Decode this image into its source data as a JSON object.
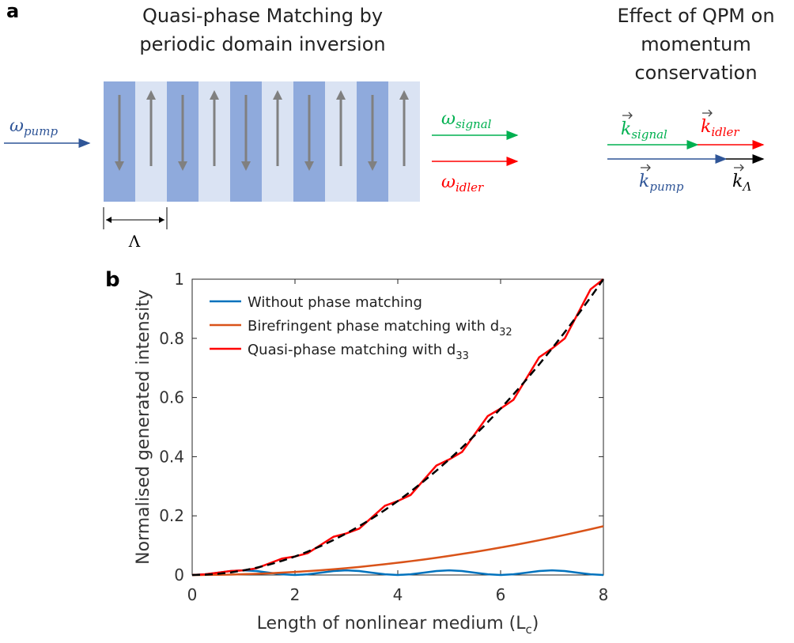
{
  "diagram": {
    "label": "a",
    "title": [
      "Quasi-phase Matching by",
      "periodic domain inversion"
    ],
    "right_title": [
      "Effect of QPM on",
      "momentum",
      "conservation"
    ],
    "omega_pump": {
      "base": "ω",
      "sub": "pump"
    },
    "omega_signal": {
      "base": "ω",
      "sub": "signal"
    },
    "omega_idler": {
      "base": "ω",
      "sub": "idler"
    },
    "k_signal": {
      "base": "k",
      "sub": "signal"
    },
    "k_idler": {
      "base": "k",
      "sub": "idler"
    },
    "k_pump": {
      "base": "k",
      "sub": "pump"
    },
    "k_lambda": {
      "base": "k",
      "sub": "Λ"
    },
    "period": "Λ"
  },
  "chart_data": {
    "type": "line",
    "label": "b",
    "xlabel": {
      "text": "Length of nonlinear medium (L",
      "sub": "c",
      "tail": ")"
    },
    "ylabel": "Normalised generated intensity",
    "xlim": [
      0,
      8
    ],
    "ylim": [
      0,
      1
    ],
    "xticks": [
      0,
      2,
      4,
      6,
      8
    ],
    "yticks": [
      0,
      0.2,
      0.4,
      0.6,
      0.8,
      1
    ],
    "grid": false,
    "legend": "top-left",
    "x": [
      0,
      0.25,
      0.5,
      0.75,
      1,
      1.25,
      1.5,
      1.75,
      2,
      2.25,
      2.5,
      2.75,
      3,
      3.25,
      3.5,
      3.75,
      4,
      4.25,
      4.5,
      4.75,
      5,
      5.25,
      5.5,
      5.75,
      6,
      6.25,
      6.5,
      6.75,
      7,
      7.25,
      7.5,
      7.75,
      8
    ],
    "series": [
      {
        "name": "Without phase matching",
        "color": "#0072bd",
        "values": [
          0,
          0.0023,
          0.0078,
          0.0133,
          0.0156,
          0.0133,
          0.0078,
          0.0023,
          0,
          0.0023,
          0.0078,
          0.0133,
          0.0156,
          0.0133,
          0.0078,
          0.0023,
          0,
          0.0023,
          0.0078,
          0.0133,
          0.0156,
          0.0133,
          0.0078,
          0.0023,
          0,
          0.0023,
          0.0078,
          0.0133,
          0.0156,
          0.0133,
          0.0078,
          0.0023,
          0
        ]
      },
      {
        "name": "Birefringent phase matching with d",
        "name_subscript": "32",
        "color": "#d95319",
        "values": [
          0,
          0.0002,
          0.0006,
          0.0015,
          0.0026,
          0.004,
          0.0058,
          0.0079,
          0.0103,
          0.0131,
          0.0161,
          0.0195,
          0.0232,
          0.0272,
          0.0316,
          0.0363,
          0.0413,
          0.0466,
          0.0522,
          0.0582,
          0.0645,
          0.0711,
          0.078,
          0.0852,
          0.0928,
          0.1007,
          0.1089,
          0.1175,
          0.1263,
          0.1355,
          0.145,
          0.1548,
          0.165
        ]
      },
      {
        "name": "Quasi-phase matching with d",
        "name_subscript": "33",
        "color": "#ff0000",
        "values": [
          0,
          0.0023,
          0.0078,
          0.0133,
          0.0156,
          0.0225,
          0.0391,
          0.0556,
          0.0625,
          0.0739,
          0.1016,
          0.1292,
          0.1406,
          0.1566,
          0.1953,
          0.234,
          0.25,
          0.2706,
          0.3203,
          0.37,
          0.3906,
          0.4158,
          0.4766,
          0.5373,
          0.5625,
          0.5923,
          0.6641,
          0.7359,
          0.7656,
          0.8,
          0.8828,
          0.9657,
          1
        ]
      },
      {
        "color": "#000000",
        "dash": true,
        "values": [
          0,
          0.001,
          0.0039,
          0.0088,
          0.0156,
          0.0244,
          0.0352,
          0.0479,
          0.0625,
          0.0791,
          0.0977,
          0.1182,
          0.1406,
          0.165,
          0.1914,
          0.2197,
          0.25,
          0.2822,
          0.3164,
          0.3525,
          0.3906,
          0.4307,
          0.4727,
          0.5166,
          0.5625,
          0.6104,
          0.6602,
          0.7119,
          0.7656,
          0.8213,
          0.8789,
          0.9385,
          1
        ]
      }
    ]
  }
}
